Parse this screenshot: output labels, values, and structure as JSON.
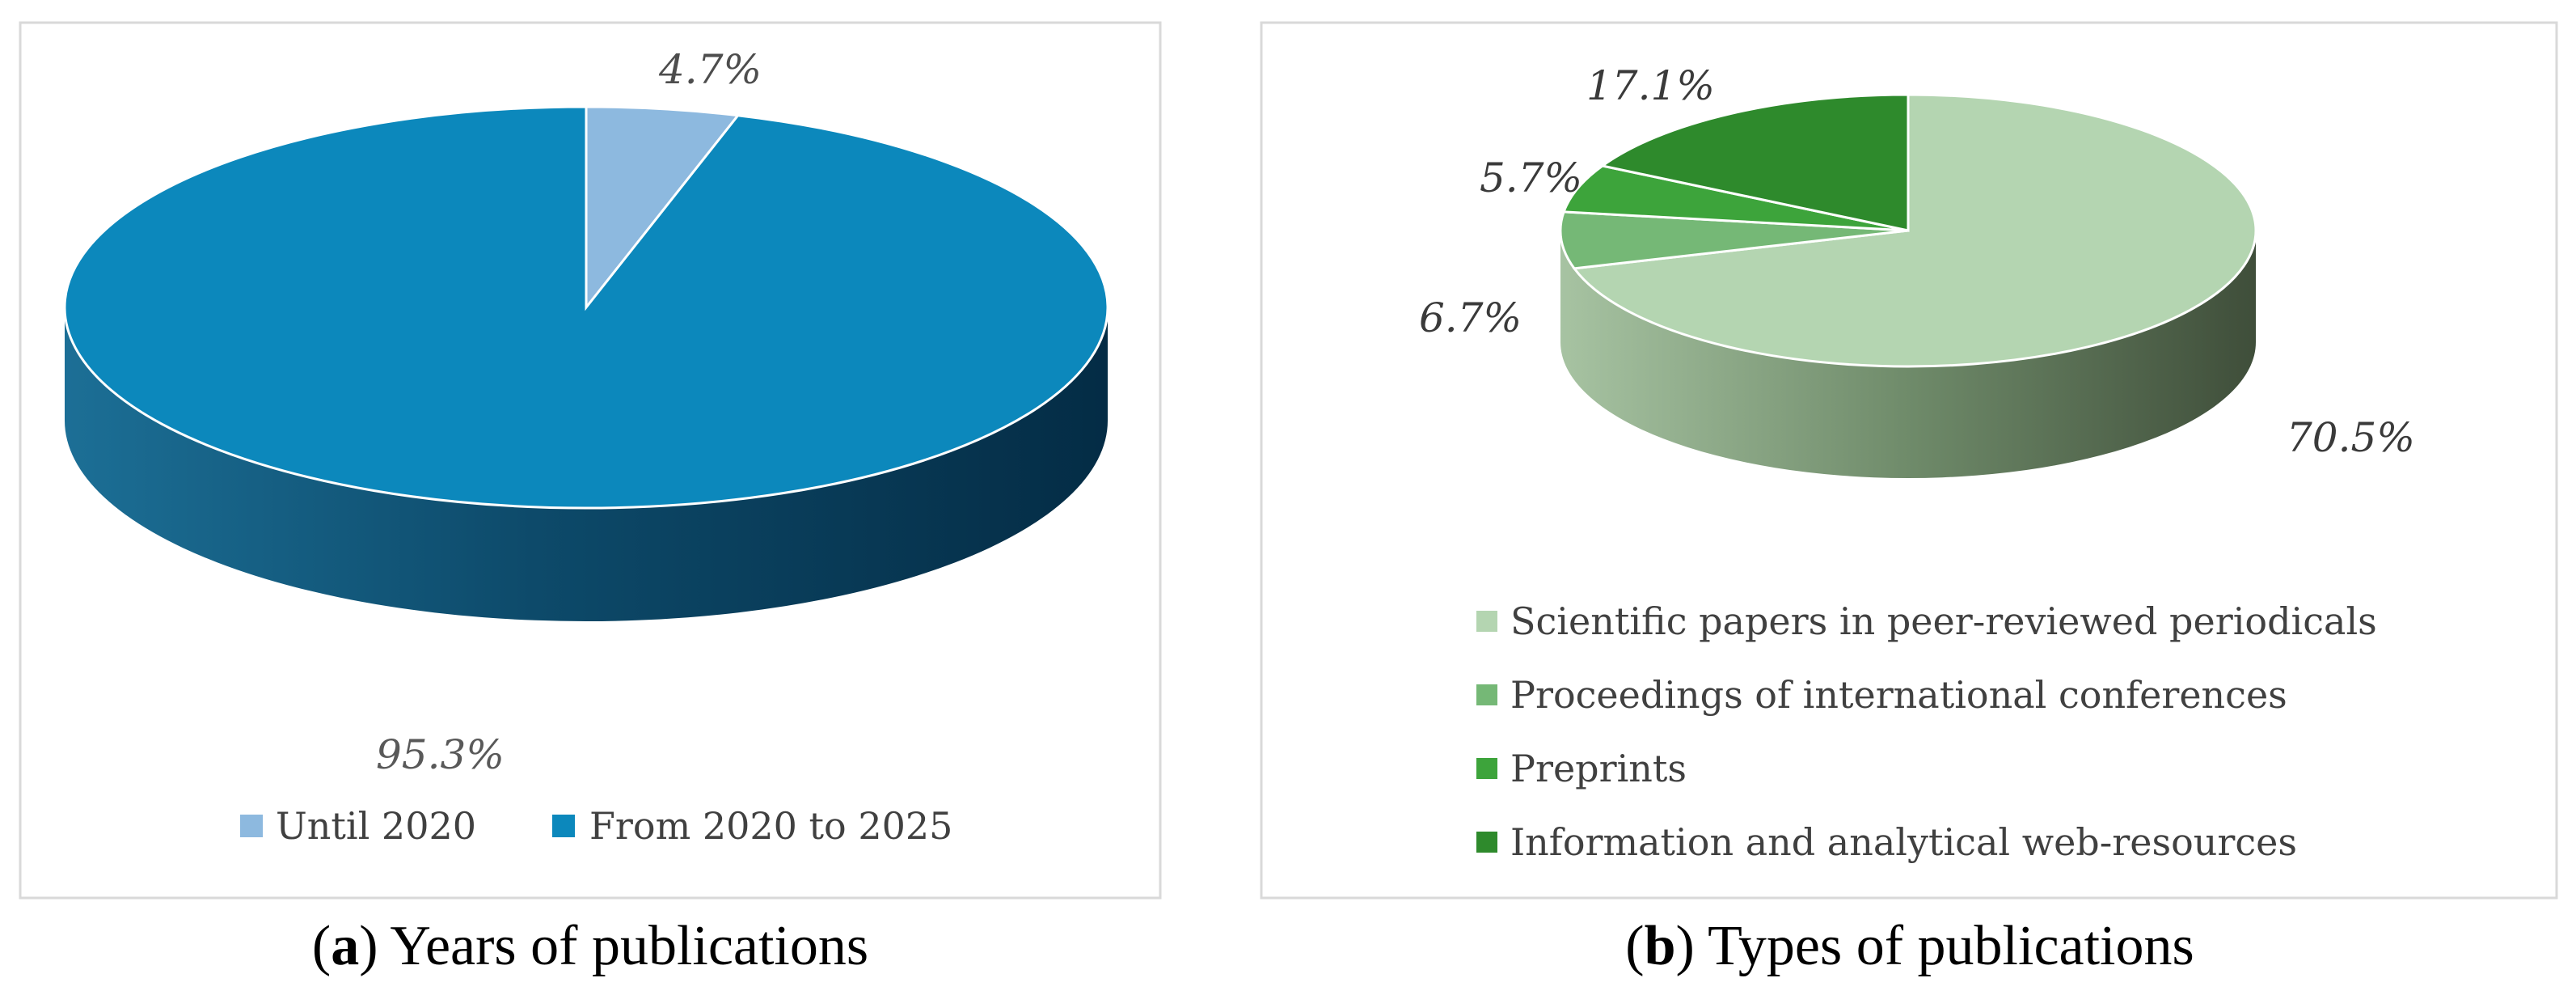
{
  "chart_data": [
    {
      "type": "pie",
      "style": "3d",
      "title": "",
      "caption": {
        "letter": "a",
        "text": " Years of publications"
      },
      "legend_position": "bottom",
      "slices": [
        {
          "label": "Until 2020",
          "value": 4.7,
          "display": "4.7%",
          "color": "#8DB9DF"
        },
        {
          "label": "From 2020 to 2025",
          "value": 95.3,
          "display": "95.3%",
          "color": "#0C88BC"
        }
      ]
    },
    {
      "type": "pie",
      "style": "3d",
      "title": "",
      "caption": {
        "letter": "b",
        "text": " Types of publications"
      },
      "legend_position": "bottom",
      "slices": [
        {
          "label": "Scientific papers in peer-reviewed periodicals",
          "value": 70.5,
          "display": "70.5%",
          "color": "#B4D5B1"
        },
        {
          "label": "Proceedings of international conferences",
          "value": 6.7,
          "display": "6.7%",
          "color": "#75B876"
        },
        {
          "label": "Preprints",
          "value": 5.7,
          "display": "5.7%",
          "color": "#3DA43B"
        },
        {
          "label": "Information and analytical web-resources",
          "value": 17.1,
          "display": "17.1%",
          "color": "#2E8A2C"
        }
      ]
    }
  ]
}
